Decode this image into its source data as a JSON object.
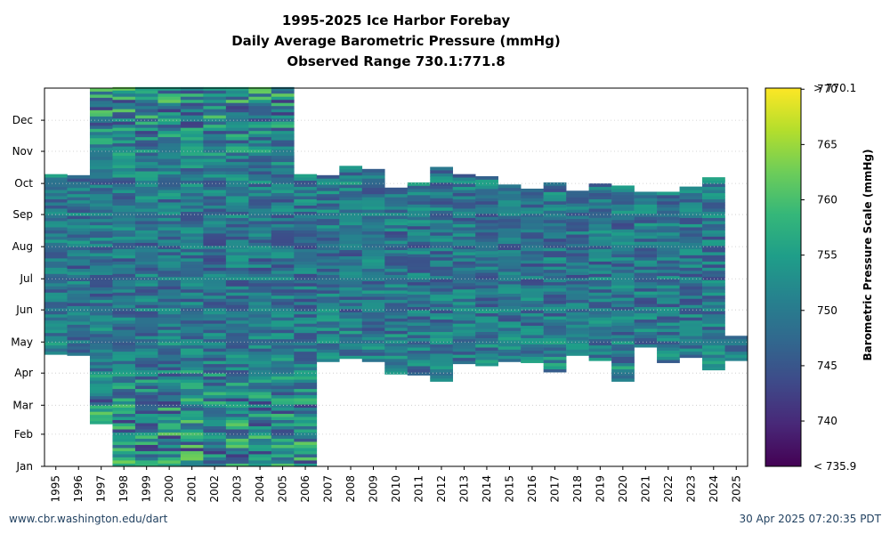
{
  "chart_data": {
    "type": "heatmap",
    "title_lines": [
      "1995-2025 Ice Harbor Forebay",
      "Daily Average Barometric Pressure (mmHg)",
      "Observed Range 730.1:771.8"
    ],
    "x_categories": [
      "1995",
      "1996",
      "1997",
      "1998",
      "1999",
      "2000",
      "2001",
      "2002",
      "2003",
      "2004",
      "2005",
      "2006",
      "2007",
      "2008",
      "2009",
      "2010",
      "2011",
      "2012",
      "2013",
      "2014",
      "2015",
      "2016",
      "2017",
      "2018",
      "2019",
      "2020",
      "2021",
      "2022",
      "2023",
      "2024",
      "2025"
    ],
    "y_tick_labels": [
      "Jan",
      "Feb",
      "Mar",
      "Apr",
      "May",
      "Jun",
      "Jul",
      "Aug",
      "Sep",
      "Oct",
      "Nov",
      "Dec"
    ],
    "y_tick_days": [
      1,
      32,
      60,
      91,
      121,
      152,
      182,
      213,
      244,
      274,
      305,
      335
    ],
    "ylim_days": [
      1,
      366
    ],
    "data_coverage": [
      {
        "year": "1995",
        "start_day": 109,
        "end_day": 282
      },
      {
        "year": "1996",
        "start_day": 108,
        "end_day": 281
      },
      {
        "year": "1997",
        "start_day": 42,
        "end_day": 366
      },
      {
        "year": "1998",
        "start_day": 1,
        "end_day": 366
      },
      {
        "year": "1999",
        "start_day": 1,
        "end_day": 366
      },
      {
        "year": "2000",
        "start_day": 1,
        "end_day": 366
      },
      {
        "year": "2001",
        "start_day": 1,
        "end_day": 366
      },
      {
        "year": "2002",
        "start_day": 1,
        "end_day": 366
      },
      {
        "year": "2003",
        "start_day": 1,
        "end_day": 366
      },
      {
        "year": "2004",
        "start_day": 1,
        "end_day": 366
      },
      {
        "year": "2005",
        "start_day": 1,
        "end_day": 366
      },
      {
        "year": "2006",
        "start_day": 1,
        "end_day": 283
      },
      {
        "year": "2007",
        "start_day": 102,
        "end_day": 282
      },
      {
        "year": "2008",
        "start_day": 105,
        "end_day": 290
      },
      {
        "year": "2009",
        "start_day": 102,
        "end_day": 286
      },
      {
        "year": "2010",
        "start_day": 90,
        "end_day": 270
      },
      {
        "year": "2011",
        "start_day": 89,
        "end_day": 275
      },
      {
        "year": "2012",
        "start_day": 83,
        "end_day": 288
      },
      {
        "year": "2013",
        "start_day": 100,
        "end_day": 282
      },
      {
        "year": "2014",
        "start_day": 98,
        "end_day": 279
      },
      {
        "year": "2015",
        "start_day": 102,
        "end_day": 271
      },
      {
        "year": "2016",
        "start_day": 101,
        "end_day": 268
      },
      {
        "year": "2017",
        "start_day": 92,
        "end_day": 274
      },
      {
        "year": "2018",
        "start_day": 108,
        "end_day": 265
      },
      {
        "year": "2019",
        "start_day": 103,
        "end_day": 272
      },
      {
        "year": "2020",
        "start_day": 83,
        "end_day": 270
      },
      {
        "year": "2021",
        "start_day": 116,
        "end_day": 264
      },
      {
        "year": "2022",
        "start_day": 101,
        "end_day": 264
      },
      {
        "year": "2023",
        "start_day": 106,
        "end_day": 269
      },
      {
        "year": "2024",
        "start_day": 94,
        "end_day": 278
      },
      {
        "year": "2025",
        "start_day": 103,
        "end_day": 126
      }
    ],
    "colorbar": {
      "label": "Barometric Pressure Scale (mmHg)",
      "min": 735.9,
      "max": 770.1,
      "ticks": [
        740,
        745,
        750,
        755,
        760,
        765,
        770
      ],
      "min_label": "< 735.9",
      "max_label": "> 770.1",
      "colormap": "viridis"
    },
    "grid": true
  },
  "footer": {
    "credit": "www.cbr.washington.edu/dart",
    "timestamp": "30 Apr 2025 07:20:35 PDT"
  },
  "colors": {
    "footer_text": "#1f3f5f",
    "grid": "#c8c8c8"
  }
}
